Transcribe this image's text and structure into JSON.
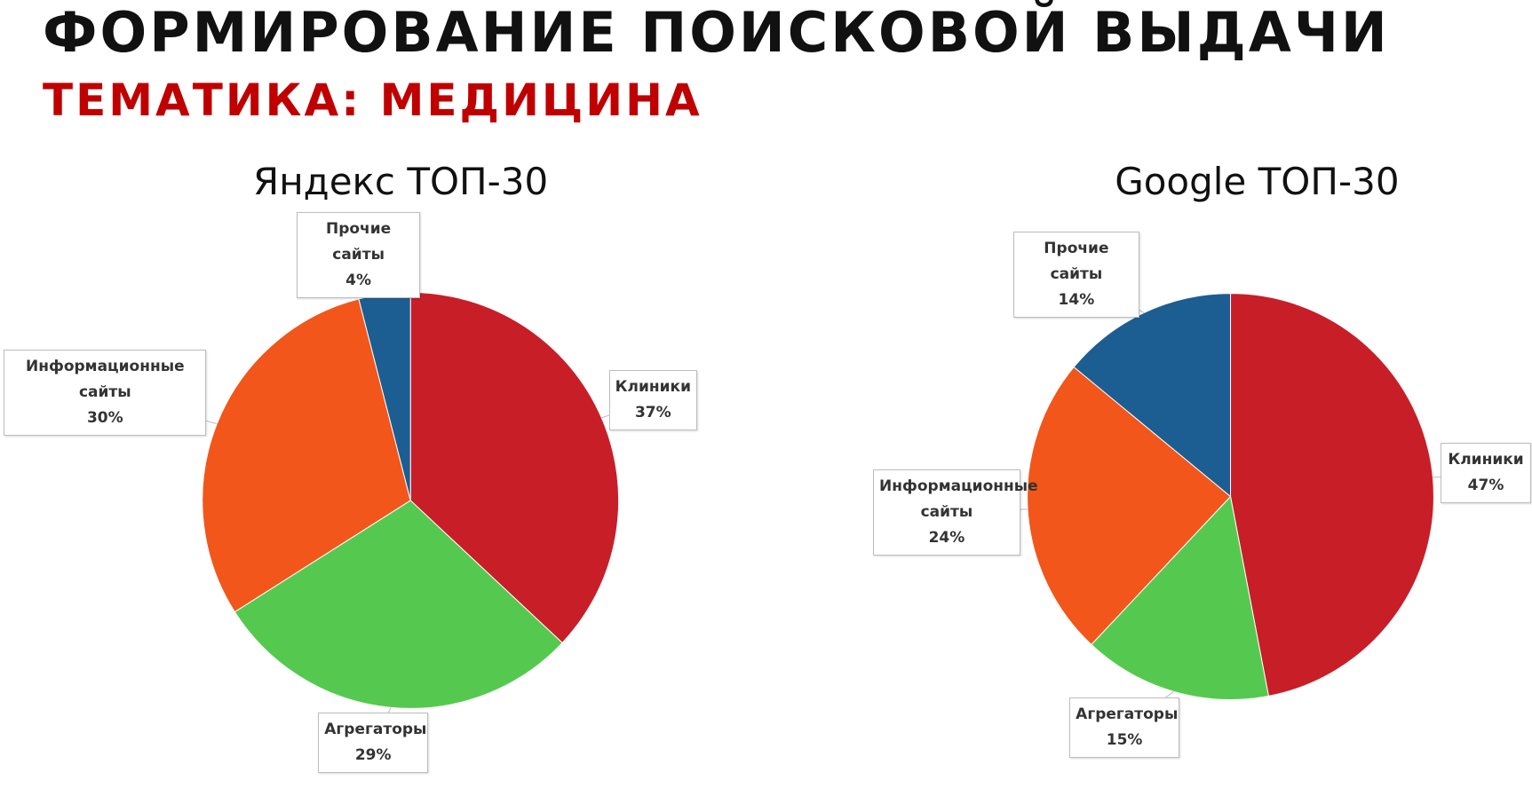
{
  "title": "ФОРМИРОВАНИЕ ПОИСКОВОЙ ВЫДАЧИ",
  "subtitle": "ТЕМАТИКА: МЕДИЦИНА",
  "chart_data": [
    {
      "type": "pie",
      "title": "Яндекс ТОП-30",
      "categories": [
        "Клиники",
        "Агрегаторы",
        "Информационные сайты",
        "Прочие сайты"
      ],
      "values": [
        37,
        29,
        30,
        4
      ],
      "value_labels": [
        "37%",
        "29%",
        "30%",
        "4%"
      ],
      "colors": [
        "#c81e28",
        "#55c94f",
        "#f2561a",
        "#1d5e92"
      ]
    },
    {
      "type": "pie",
      "title": "Google ТОП-30",
      "categories": [
        "Клиники",
        "Агрегаторы",
        "Информационные сайты",
        "Прочие сайты"
      ],
      "values": [
        47,
        15,
        24,
        14
      ],
      "value_labels": [
        "47%",
        "15%",
        "24%",
        "14%"
      ],
      "colors": [
        "#c81e28",
        "#55c94f",
        "#f2561a",
        "#1d5e92"
      ]
    }
  ]
}
